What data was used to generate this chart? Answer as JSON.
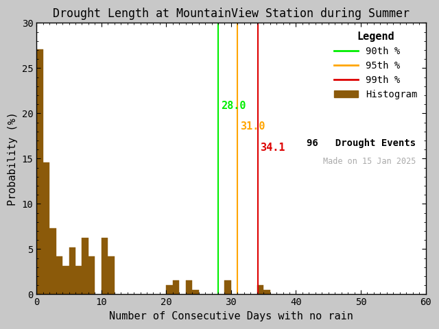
{
  "title": "Drought Length at MountainView Station during Summer",
  "xlabel": "Number of Consecutive Days with no rain",
  "ylabel": "Probability (%)",
  "xlim": [
    0,
    60
  ],
  "ylim": [
    0,
    30
  ],
  "xticks": [
    0,
    10,
    20,
    30,
    40,
    50,
    60
  ],
  "yticks": [
    0,
    5,
    10,
    15,
    20,
    25,
    30
  ],
  "bar_color": "#8B5A0A",
  "background_color": "#e8e8e8",
  "figure_color": "#d0d0d0",
  "bin_width": 1,
  "bar_heights": {
    "1": 27.08,
    "2": 14.58,
    "3": 7.29,
    "4": 4.17,
    "5": 3.13,
    "6": 5.21,
    "7": 3.13,
    "8": 6.25,
    "9": 4.17,
    "10": 0.0,
    "11": 6.25,
    "12": 4.17,
    "13": 0.0,
    "14": 0.0,
    "15": 0.0,
    "16": 0.0,
    "17": 0.0,
    "18": 0.0,
    "19": 0.0,
    "20": 0.0,
    "21": 1.04,
    "22": 1.56,
    "23": 0.0,
    "24": 1.56,
    "25": 0.52,
    "26": 0.0,
    "27": 0.0,
    "28": 0.0,
    "29": 0.0,
    "30": 1.56,
    "31": 0.0,
    "32": 0.0,
    "33": 0.0,
    "34": 0.0,
    "35": 1.04,
    "36": 0.52
  },
  "p90": 28.0,
  "p95": 31.0,
  "p99": 34.1,
  "p90_color": "#00ee00",
  "p95_color": "#FFA500",
  "p99_color": "#dd0000",
  "p90_label": "90th %",
  "p95_label": "95th %",
  "p99_label": "99th %",
  "hist_label": "Histogram",
  "events_text": "96   Drought Events",
  "watermark": "Made on 15 Jan 2025",
  "watermark_color": "#aaaaaa",
  "legend_title": "Legend",
  "title_fontsize": 12,
  "label_fontsize": 11,
  "tick_fontsize": 10,
  "legend_fontsize": 10,
  "annot_fontsize": 11
}
